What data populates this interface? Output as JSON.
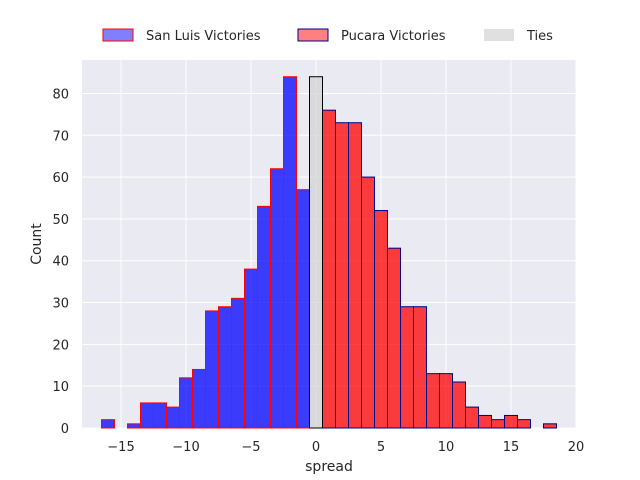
{
  "chart_data": {
    "type": "bar",
    "title": "",
    "xlabel": "spread",
    "ylabel": "Count",
    "xlim": [
      -18,
      20
    ],
    "ylim": [
      0,
      88
    ],
    "xticks": [
      -15,
      -10,
      -5,
      0,
      5,
      10,
      15,
      20
    ],
    "xtick_labels": [
      "−15",
      "−10",
      "−5",
      "0",
      "5",
      "10",
      "15",
      "20"
    ],
    "yticks": [
      0,
      10,
      20,
      30,
      40,
      50,
      60,
      70,
      80
    ],
    "grid": true,
    "legend_position": "top",
    "series": [
      {
        "name": "San Luis Victories",
        "fill": "#0000ff",
        "edge": "#ff0000",
        "legend_fill": "#8080ff",
        "x": [
          -16,
          -14,
          -13,
          -12,
          -11,
          -10,
          -9,
          -8,
          -7,
          -6,
          -5,
          -4,
          -3,
          -2,
          -1
        ],
        "values": [
          2,
          1,
          6,
          6,
          5,
          12,
          14,
          28,
          29,
          31,
          38,
          53,
          62,
          84,
          57
        ]
      },
      {
        "name": "Pucara Victories",
        "fill": "#ff0000",
        "edge": "#00008b",
        "legend_fill": "#ff8080",
        "x": [
          1,
          2,
          3,
          4,
          5,
          6,
          7,
          8,
          9,
          10,
          11,
          12,
          13,
          14,
          15,
          16,
          18
        ],
        "values": [
          76,
          73,
          73,
          60,
          52,
          43,
          29,
          29,
          13,
          13,
          11,
          5,
          3,
          2,
          3,
          2,
          1
        ]
      },
      {
        "name": "Ties",
        "fill": "#d3d3d3",
        "edge": "#000000",
        "legend_fill": "#e0e0e0",
        "x": [
          0
        ],
        "values": [
          84
        ]
      }
    ]
  }
}
